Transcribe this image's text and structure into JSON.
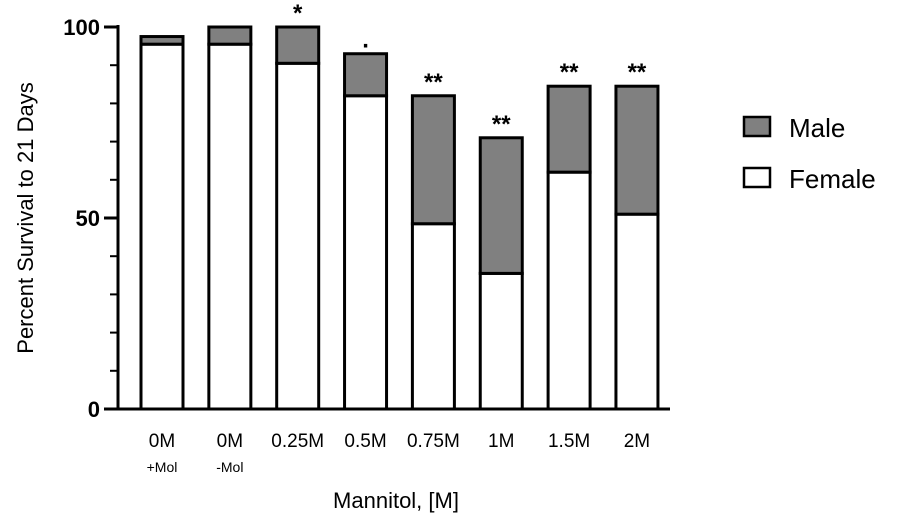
{
  "chart_data": {
    "type": "bar",
    "stacked": true,
    "title": "",
    "xlabel": "Mannitol, [M]",
    "ylabel": "Percent Survival to 21 Days",
    "ylim": [
      0,
      100
    ],
    "yticks": [
      0,
      50,
      100
    ],
    "categories": [
      "0M",
      "0M",
      "0.25M",
      "0.5M",
      "0.75M",
      "1M",
      "1.5M",
      "2M"
    ],
    "category_sublabels": [
      "+Mol",
      "-Mol",
      "",
      "",
      "",
      "",
      "",
      ""
    ],
    "significance": [
      "",
      "",
      "*",
      ".",
      "**",
      "**",
      "**",
      "**"
    ],
    "series": [
      {
        "name": "Female",
        "color": "#ffffff",
        "values": [
          95.5,
          95.5,
          90.5,
          82,
          48.5,
          35.5,
          62,
          51
        ]
      },
      {
        "name": "Male",
        "color": "#808080",
        "values": [
          2,
          4.5,
          9.5,
          11,
          33.5,
          35.5,
          22.5,
          33.5
        ]
      }
    ],
    "legend": {
      "placement": "right",
      "entries": [
        "Male",
        "Female"
      ]
    },
    "grid": false
  }
}
